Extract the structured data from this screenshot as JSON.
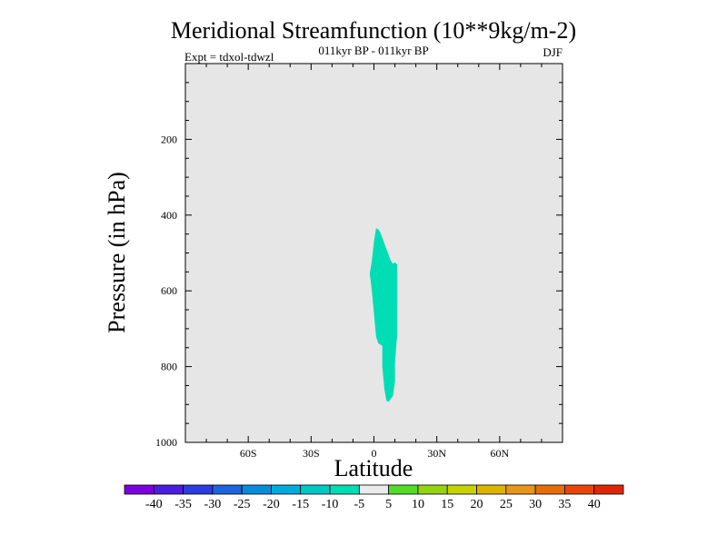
{
  "chart_data": {
    "type": "contour",
    "title": "Meridional Streamfunction (10**9kg/m-2)",
    "subtitle": "011kyr BP - 011kyr BP",
    "left_label": "Expt = tdxol-tdwzl",
    "right_label": "DJF",
    "xlabel": "Latitude",
    "ylabel": "Pressure (in hPa)",
    "xlim": [
      -90,
      90
    ],
    "ylim": [
      1000,
      0
    ],
    "x_ticks": [
      {
        "value": -60,
        "label": "60S"
      },
      {
        "value": -30,
        "label": "30S"
      },
      {
        "value": 0,
        "label": "0"
      },
      {
        "value": 30,
        "label": "30N"
      },
      {
        "value": 60,
        "label": "60N"
      }
    ],
    "y_ticks": [
      {
        "value": 200,
        "label": "200"
      },
      {
        "value": 400,
        "label": "400"
      },
      {
        "value": 600,
        "label": "600"
      },
      {
        "value": 800,
        "label": "800"
      },
      {
        "value": 1000,
        "label": "1000"
      }
    ],
    "background_color": "#e6e6e6",
    "filled_regions": [
      {
        "level": "-10 to -5",
        "color": "#00dcb4",
        "polygon": [
          [
            1,
            435
          ],
          [
            2,
            437
          ],
          [
            3,
            445
          ],
          [
            4,
            460
          ],
          [
            5,
            475
          ],
          [
            6,
            490
          ],
          [
            7,
            505
          ],
          [
            8,
            520
          ],
          [
            9,
            528
          ],
          [
            10,
            525
          ],
          [
            11,
            530
          ],
          [
            11,
            570
          ],
          [
            11,
            650
          ],
          [
            11,
            720
          ],
          [
            10,
            790
          ],
          [
            10,
            840
          ],
          [
            9,
            878
          ],
          [
            8,
            885
          ],
          [
            7,
            893
          ],
          [
            6,
            890
          ],
          [
            5,
            860
          ],
          [
            4,
            800
          ],
          [
            4,
            745
          ],
          [
            2,
            738
          ],
          [
            1,
            720
          ],
          [
            0,
            660
          ],
          [
            -1,
            600
          ],
          [
            -2,
            555
          ],
          [
            -1,
            520
          ],
          [
            0,
            470
          ]
        ]
      }
    ],
    "colorbar": {
      "labels": [
        "-40",
        "-35",
        "-30",
        "-25",
        "-20",
        "-15",
        "-10",
        "-5",
        "5",
        "10",
        "15",
        "20",
        "25",
        "30",
        "35",
        "40"
      ],
      "colors": [
        "#7c00dc",
        "#4b1edc",
        "#2d3cdc",
        "#1e64dc",
        "#0a8cdc",
        "#00aadc",
        "#00c8c8",
        "#00dcb4",
        "#ebebeb",
        "#50dc28",
        "#96d214",
        "#c8d200",
        "#dcb400",
        "#e6961e",
        "#e66e0a",
        "#e6460a",
        "#dc2800"
      ]
    }
  }
}
